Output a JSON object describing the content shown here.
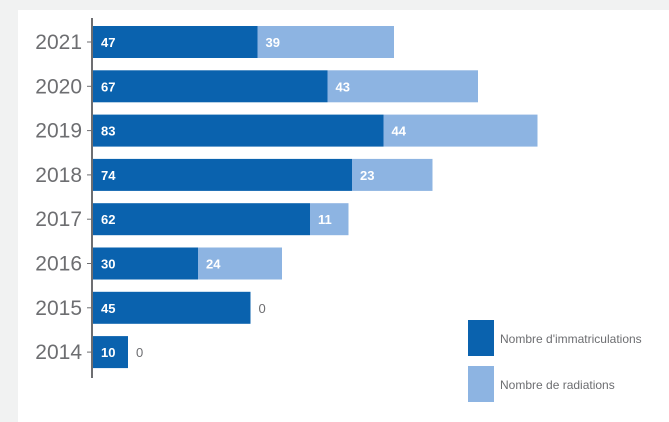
{
  "chart_data": {
    "type": "bar",
    "orientation": "horizontal",
    "stacked": true,
    "categories": [
      "2021",
      "2020",
      "2019",
      "2018",
      "2017",
      "2016",
      "2015",
      "2014"
    ],
    "series": [
      {
        "name": "Nombre d'immatriculations",
        "values": [
          47,
          67,
          83,
          74,
          62,
          30,
          45,
          10
        ],
        "color": "#0a62ae"
      },
      {
        "name": "Nombre de radiations",
        "values": [
          39,
          43,
          44,
          23,
          11,
          24,
          0,
          0
        ],
        "color": "#8db4e2"
      }
    ],
    "xlim": [
      0,
      152
    ],
    "grid": false,
    "legend_position": "bottom-right"
  },
  "colors": {
    "axis": "#6d6e71",
    "label_text": "#6d6e71"
  }
}
